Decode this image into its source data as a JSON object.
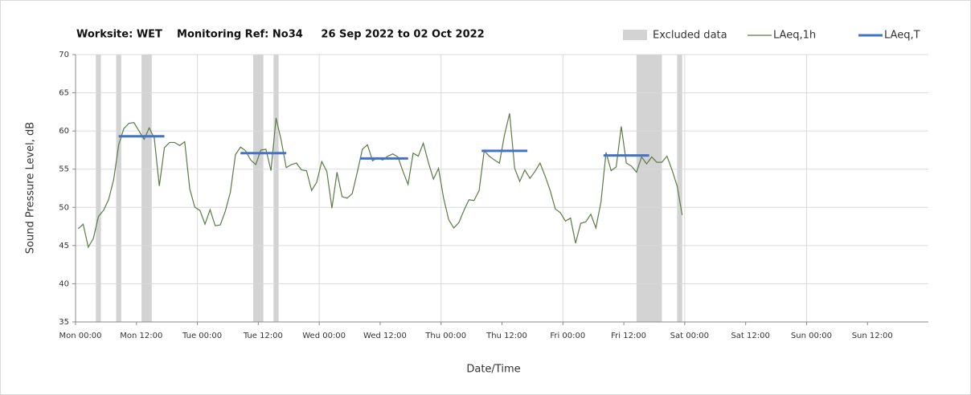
{
  "chart_data": {
    "type": "line",
    "title": "Worksite: WET    Monitoring Ref: No34     26 Sep 2022 to 02 Oct 2022",
    "x_label": "Date/Time",
    "y_label": "Sound Pressure Level, dB",
    "xlim": [
      0,
      168
    ],
    "ylim": [
      35,
      70
    ],
    "yticks": [
      35,
      40,
      45,
      50,
      55,
      60,
      65,
      70
    ],
    "xticks": [
      {
        "value": 0,
        "label": "Mon 00:00"
      },
      {
        "value": 12,
        "label": "Mon 12:00"
      },
      {
        "value": 24,
        "label": "Tue 00:00"
      },
      {
        "value": 36,
        "label": "Tue 12:00"
      },
      {
        "value": 48,
        "label": "Wed 00:00"
      },
      {
        "value": 60,
        "label": "Wed 12:00"
      },
      {
        "value": 72,
        "label": "Thu 00:00"
      },
      {
        "value": 84,
        "label": "Thu 12:00"
      },
      {
        "value": 96,
        "label": "Fri 00:00"
      },
      {
        "value": 108,
        "label": "Fri 12:00"
      },
      {
        "value": 120,
        "label": "Sat 00:00"
      },
      {
        "value": 132,
        "label": "Sat 12:00"
      },
      {
        "value": 144,
        "label": "Sun 00:00"
      },
      {
        "value": 156,
        "label": "Sun 12:00"
      }
    ],
    "grid": true,
    "excluded": {
      "name": "Excluded data",
      "color": "#d3d3d3",
      "ranges": [
        [
          4,
          5
        ],
        [
          8,
          9
        ],
        [
          13,
          15
        ],
        [
          35,
          37
        ],
        [
          39,
          40
        ],
        [
          110.5,
          115.5
        ],
        [
          118.5,
          119.5
        ]
      ]
    },
    "series": [
      {
        "name": "LAeq,1h",
        "color": "#5b7a46",
        "x": [
          0.5,
          1.5,
          2.5,
          3.5,
          4.5,
          5.5,
          6.5,
          7.5,
          8.5,
          9.5,
          10.5,
          11.5,
          12.5,
          13.5,
          14.5,
          15.5,
          16.5,
          17.5,
          18.5,
          19.5,
          20.5,
          21.5,
          22.5,
          23.5,
          24.5,
          25.5,
          26.5,
          27.5,
          28.5,
          29.5,
          30.5,
          31.5,
          32.5,
          33.5,
          34.5,
          35.5,
          36.5,
          37.5,
          38.5,
          39.5,
          40.5,
          41.5,
          42.5,
          43.5,
          44.5,
          45.5,
          46.5,
          47.5,
          48.5,
          49.5,
          50.5,
          51.5,
          52.5,
          53.5,
          54.5,
          55.5,
          56.5,
          57.5,
          58.5,
          59.5,
          60.5,
          61.5,
          62.5,
          63.5,
          64.5,
          65.5,
          66.5,
          67.5,
          68.5,
          69.5,
          70.5,
          71.5,
          72.5,
          73.5,
          74.5,
          75.5,
          76.5,
          77.5,
          78.5,
          79.5,
          80.5,
          81.5,
          82.5,
          83.5,
          84.5,
          85.5,
          86.5,
          87.5,
          88.5,
          89.5,
          90.5,
          91.5,
          92.5,
          93.5,
          94.5,
          95.5,
          96.5,
          97.5,
          98.5,
          99.5,
          100.5,
          101.5,
          102.5,
          103.5,
          104.5,
          105.5,
          106.5,
          107.5,
          108.5,
          109.5,
          110.5,
          111.5,
          112.5,
          113.5,
          114.5,
          115.5,
          116.5,
          117.5,
          118.5,
          119.5
        ],
        "values": [
          47.2,
          47.8,
          44.8,
          45.9,
          48.8,
          49.6,
          51,
          53.6,
          58.2,
          60.3,
          61,
          61.1,
          60,
          58.9,
          60.4,
          59.1,
          52.8,
          57.8,
          58.5,
          58.5,
          58.1,
          58.6,
          52.4,
          50,
          49.6,
          47.8,
          49.7,
          47.6,
          47.7,
          49.5,
          52,
          56.9,
          57.9,
          57.4,
          56.2,
          55.6,
          57.5,
          57.6,
          54.8,
          61.7,
          58.8,
          55.2,
          55.6,
          55.8,
          54.9,
          54.8,
          52.2,
          53.3,
          56,
          54.7,
          49.9,
          54.6,
          51.4,
          51.2,
          51.8,
          54.6,
          57.6,
          58.2,
          56.1,
          56.5,
          56.2,
          56.7,
          57,
          56.6,
          54.7,
          53,
          57.1,
          56.7,
          58.4,
          55.9,
          53.7,
          55.1,
          51.2,
          48.4,
          47.3,
          48,
          49.6,
          51,
          50.9,
          52.2,
          57.4,
          56.7,
          56.2,
          55.8,
          59.5,
          62.3,
          55.1,
          53.4,
          54.9,
          53.8,
          54.7,
          55.8,
          54.1,
          52.2,
          49.8,
          49.3,
          48.2,
          48.6,
          45.3,
          47.9,
          48.1,
          49.1,
          47.3,
          50.7,
          57.2,
          54.8,
          55.3,
          60.6,
          55.8,
          55.4,
          54.6,
          56.6,
          55.7,
          56.6,
          55.9,
          55.9,
          56.7,
          54.9,
          52.8,
          49
        ]
      },
      {
        "name": "LAeq,T",
        "color": "#4472c4",
        "periods": [
          [
            8.5,
            17.5
          ],
          [
            32.5,
            41.5
          ],
          [
            56,
            65.5
          ],
          [
            80,
            89
          ],
          [
            104,
            113
          ]
        ],
        "values": [
          59.3,
          57.1,
          56.4,
          57.4,
          56.8
        ]
      }
    ]
  }
}
